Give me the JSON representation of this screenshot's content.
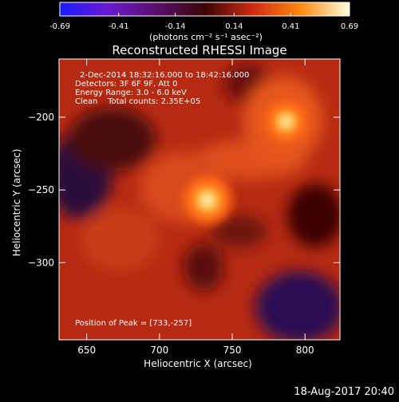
{
  "colorbar": {
    "tick_labels": [
      "-0.69",
      "-0.41",
      "-0.14",
      "0.14",
      "0.41",
      "0.69"
    ],
    "tick_values": [
      -0.69,
      -0.41,
      -0.14,
      0.14,
      0.41,
      0.69
    ],
    "range": [
      -0.69,
      0.69
    ],
    "units": "(photons cm⁻² s⁻¹ asec⁻²)",
    "colors": [
      "#1a1aff",
      "#6a1ad0",
      "#5a0f6a",
      "#3a0505",
      "#d02a10",
      "#ff8a10",
      "#ffffe0"
    ]
  },
  "chart_data": {
    "type": "heatmap",
    "title": "Reconstructed RHESSI Image",
    "xlabel": "Heliocentric X (arcsec)",
    "ylabel": "Heliocentric Y (arcsec)",
    "xlim": [
      631,
      824
    ],
    "ylim": [
      -353,
      -160
    ],
    "x_ticks": [
      650,
      700,
      750,
      800
    ],
    "y_ticks": [
      -200,
      -250,
      -300
    ],
    "x_tick_labels": [
      "650",
      "700",
      "750",
      "800"
    ],
    "y_tick_labels": [
      "−200",
      "−250",
      "−300"
    ],
    "peaks": [
      {
        "x": 733,
        "y": -257,
        "value": 0.69
      },
      {
        "x": 787,
        "y": -203,
        "value": 0.6
      }
    ],
    "annotations": {
      "line1": "2-Dec-2014 18:32:16.000 to 18:42:16.000",
      "line2": "Detectors: 3F 6F 9F, Att 0",
      "line3": "Energy Range: 3.0 - 6.0 keV",
      "line4": "Clean    Total counts: 2.35E+05",
      "peak_label": "Position of Peak = [733,-257]"
    }
  },
  "footer": {
    "timestamp": "18-Aug-2017 20:40"
  }
}
